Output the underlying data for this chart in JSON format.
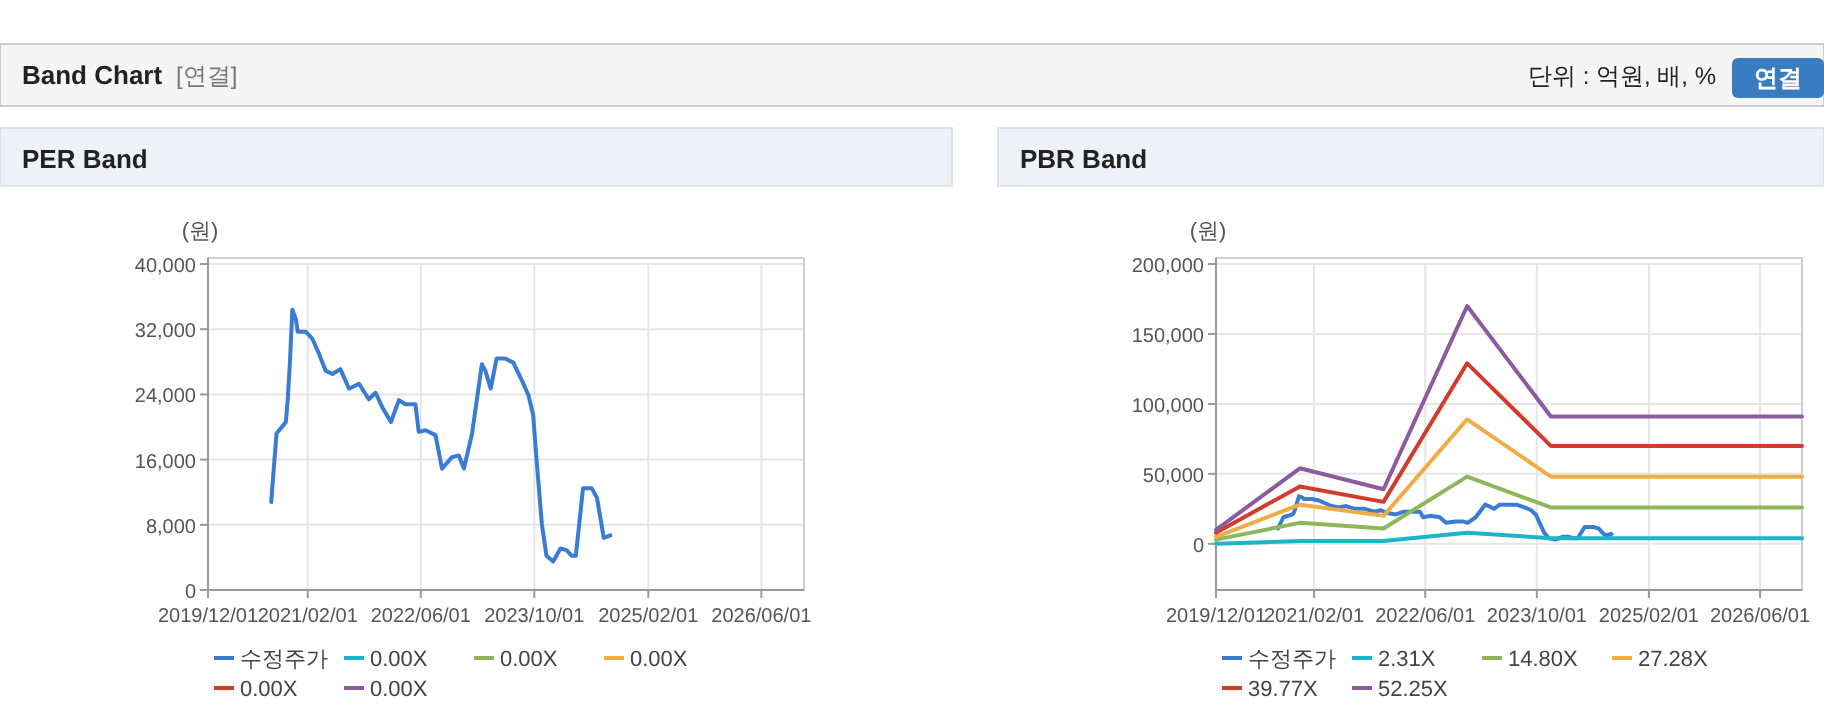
{
  "chart_data": [
    {
      "type": "line",
      "title": "PER Band",
      "ylabel": "(원)",
      "annotations": [
        "Band Chart",
        "[연결]",
        "단위 : 억원, 배, %",
        "연결"
      ],
      "xlim": [
        "2019-12-01",
        "2026-12-01"
      ],
      "xticks": [
        {
          "value": "2019-12-01",
          "label": "2019/12/01"
        },
        {
          "value": "2021-02-01",
          "label": "2021/02/01"
        },
        {
          "value": "2022-06-01",
          "label": "2022/06/01"
        },
        {
          "value": "2023-10-01",
          "label": "2023/10/01"
        },
        {
          "value": "2025-02-01",
          "label": "2025/02/01"
        },
        {
          "value": "2026-06-01",
          "label": "2026/06/01"
        }
      ],
      "ylim": [
        0,
        40000
      ],
      "yticks": [
        0,
        {
          "value": 8000,
          "label": "8,000"
        },
        {
          "value": 16000,
          "label": "16,000"
        },
        {
          "value": 24000,
          "label": "24,000"
        },
        {
          "value": 32000,
          "label": "32,000"
        },
        {
          "value": 40000,
          "label": "40,000"
        }
      ],
      "grid": true,
      "legend": "bottom",
      "marker": "none",
      "line_style": "solid",
      "series": [
        {
          "name": "수정주가",
          "color": "#3a7bd5",
          "x": [
            "2020-08-28",
            "2020-09-20",
            "2020-10-30",
            "2020-11-07",
            "2020-11-16",
            "2020-11-27",
            "2020-12-12",
            "2020-12-20",
            "2021-01-23",
            "2021-02-21",
            "2021-03-21",
            "2021-04-19",
            "2021-05-18",
            "2021-06-21",
            "2021-07-28",
            "2021-09-09",
            "2021-10-21",
            "2021-11-19",
            "2021-12-18",
            "2022-01-24",
            "2022-02-27",
            "2022-03-27",
            "2022-05-09",
            "2022-05-23",
            "2022-06-21",
            "2022-08-03",
            "2022-08-31",
            "2022-10-13",
            "2022-11-11",
            "2022-12-03",
            "2023-01-07",
            "2023-02-18",
            "2023-03-05",
            "2023-03-28",
            "2023-04-22",
            "2023-05-29",
            "2023-07-03",
            "2023-08-09",
            "2023-09-06",
            "2023-09-26",
            "2023-10-13",
            "2023-11-02",
            "2023-11-22",
            "2023-12-21",
            "2024-01-21",
            "2024-02-16",
            "2024-03-10",
            "2024-03-27",
            "2024-04-27",
            "2024-06-03",
            "2024-06-26",
            "2024-07-25",
            "2024-08-22"
          ],
          "values": [
            10800,
            19200,
            20600,
            23300,
            27700,
            34400,
            33200,
            31700,
            31700,
            30800,
            29000,
            26900,
            26500,
            27100,
            24700,
            25300,
            23400,
            24200,
            22400,
            20600,
            23300,
            22800,
            22800,
            19400,
            19600,
            19000,
            14900,
            16300,
            16500,
            14900,
            19200,
            27700,
            26900,
            24700,
            28400,
            28400,
            27900,
            25700,
            23900,
            21500,
            15100,
            8200,
            4200,
            3500,
            5100,
            4900,
            4200,
            4200,
            12500,
            12500,
            11300,
            6400,
            6700
          ]
        },
        {
          "name": "0.00X",
          "color": "#1bb5c9"
        },
        {
          "name": "0.00X",
          "color": "#8db85a"
        },
        {
          "name": "0.00X",
          "color": "#f0ad45"
        },
        {
          "name": "0.00X",
          "color": "#d13c2e"
        },
        {
          "name": "0.00X",
          "color": "#8e5a9e"
        }
      ]
    },
    {
      "type": "line",
      "title": "PBR Band",
      "ylabel": "(원)",
      "xlim": [
        "2019-12-01",
        "2026-12-01"
      ],
      "xticks": [
        {
          "value": "2019-12-01",
          "label": "2019/12/01"
        },
        {
          "value": "2021-02-01",
          "label": "2021/02/01"
        },
        {
          "value": "2022-06-01",
          "label": "2022/06/01"
        },
        {
          "value": "2023-10-01",
          "label": "2023/10/01"
        },
        {
          "value": "2025-02-01",
          "label": "2025/02/01"
        },
        {
          "value": "2026-06-01",
          "label": "2026/06/01"
        }
      ],
      "ylim": [
        -33000,
        200000
      ],
      "yticks": [
        0,
        {
          "value": 50000,
          "label": "50,000"
        },
        {
          "value": 100000,
          "label": "100,000"
        },
        {
          "value": 150000,
          "label": "150,000"
        },
        {
          "value": 200000,
          "label": "200,000"
        }
      ],
      "grid": true,
      "legend": "bottom",
      "marker": "none",
      "line_style": "solid",
      "series": [
        {
          "name": "수정주가",
          "color": "#3a7bd5",
          "x": [
            "2020-08-28",
            "2020-09-20",
            "2020-10-30",
            "2020-11-07",
            "2020-11-16",
            "2020-11-27",
            "2020-12-12",
            "2020-12-20",
            "2021-01-23",
            "2021-02-21",
            "2021-03-21",
            "2021-04-19",
            "2021-05-18",
            "2021-06-21",
            "2021-07-28",
            "2021-09-09",
            "2021-10-21",
            "2021-11-19",
            "2021-12-18",
            "2022-01-24",
            "2022-02-27",
            "2022-03-27",
            "2022-05-09",
            "2022-05-23",
            "2022-06-21",
            "2022-08-03",
            "2022-08-31",
            "2022-10-13",
            "2022-11-11",
            "2022-12-03",
            "2023-01-07",
            "2023-02-18",
            "2023-03-05",
            "2023-03-28",
            "2023-04-22",
            "2023-05-29",
            "2023-07-03",
            "2023-08-09",
            "2023-09-06",
            "2023-09-26",
            "2023-10-13",
            "2023-11-02",
            "2023-11-22",
            "2023-12-21",
            "2024-01-21",
            "2024-02-16",
            "2024-03-10",
            "2024-03-27",
            "2024-04-27",
            "2024-06-03",
            "2024-06-26",
            "2024-07-25",
            "2024-08-22"
          ],
          "values": [
            11000,
            19000,
            21000,
            23000,
            28000,
            34000,
            33000,
            32000,
            32000,
            31000,
            29000,
            27000,
            26000,
            27000,
            25000,
            25000,
            23000,
            24000,
            22000,
            21000,
            23000,
            23000,
            23000,
            19000,
            20000,
            19000,
            15000,
            16000,
            16000,
            15000,
            19000,
            28000,
            27000,
            25000,
            28000,
            28000,
            28000,
            26000,
            24000,
            21000,
            15000,
            8000,
            4000,
            3000,
            5000,
            5000,
            4000,
            4000,
            12000,
            12000,
            11000,
            6000,
            7000
          ]
        },
        {
          "name": "2.31X",
          "color": "#1bb5c9",
          "x": [
            "2019-12-01",
            "2020-12-01",
            "2021-12-01",
            "2022-12-01",
            "2023-12-01",
            "2026-12-01"
          ],
          "values": [
            0,
            2000,
            2000,
            8000,
            4000,
            4000
          ]
        },
        {
          "name": "14.80X",
          "color": "#8db85a",
          "x": [
            "2019-12-01",
            "2020-12-01",
            "2021-12-01",
            "2022-12-01",
            "2023-12-01",
            "2026-12-01"
          ],
          "values": [
            3000,
            15000,
            11000,
            48000,
            26000,
            26000
          ]
        },
        {
          "name": "27.28X",
          "color": "#f0ad45",
          "x": [
            "2019-12-01",
            "2020-12-01",
            "2021-12-01",
            "2022-12-01",
            "2023-12-01",
            "2026-12-01"
          ],
          "values": [
            5000,
            28000,
            20000,
            89000,
            48000,
            48000
          ]
        },
        {
          "name": "39.77X",
          "color": "#d13c2e",
          "x": [
            "2019-12-01",
            "2020-12-01",
            "2021-12-01",
            "2022-12-01",
            "2023-12-01",
            "2026-12-01"
          ],
          "values": [
            8000,
            41000,
            30000,
            129000,
            70000,
            70000
          ]
        },
        {
          "name": "52.25X",
          "color": "#8e5a9e",
          "x": [
            "2019-12-01",
            "2020-12-01",
            "2021-12-01",
            "2022-12-01",
            "2023-12-01",
            "2026-12-01"
          ],
          "values": [
            10000,
            54000,
            39000,
            170000,
            91000,
            91000
          ]
        }
      ]
    }
  ]
}
